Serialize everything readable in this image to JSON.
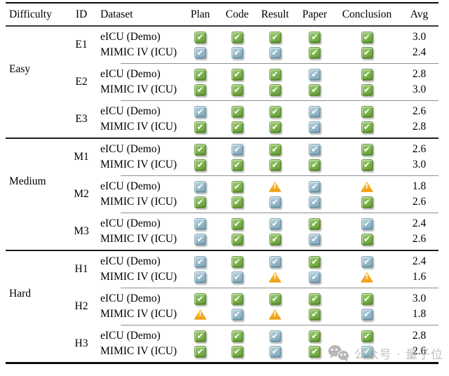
{
  "header": {
    "columns": [
      "Difficulty",
      "ID",
      "Dataset",
      "Plan",
      "Code",
      "Result",
      "Paper",
      "Conclusion",
      "Avg"
    ]
  },
  "legend": {
    "green": "full-success-check",
    "blue": "partial-success-check",
    "warn": "warning-triangle"
  },
  "colors": {
    "check_green": "#7ab14b",
    "check_blue": "#93b7c8",
    "warning_orange": "#f9b831",
    "watermark_gray": "#b6b6b6"
  },
  "glyphs": {
    "check": "✔",
    "warn": "!"
  },
  "sections": [
    {
      "difficulty": "Easy",
      "groups": [
        {
          "id": "E1",
          "rows": [
            {
              "dataset": "eICU (Demo)",
              "marks": [
                "green",
                "green",
                "green",
                "green",
                "green"
              ],
              "avg": "3.0"
            },
            {
              "dataset": "MIMIC IV (ICU)",
              "marks": [
                "blue",
                "blue",
                "blue",
                "green",
                "green"
              ],
              "avg": "2.4"
            }
          ]
        },
        {
          "id": "E2",
          "rows": [
            {
              "dataset": "eICU (Demo)",
              "marks": [
                "green",
                "green",
                "green",
                "blue",
                "green"
              ],
              "avg": "2.8"
            },
            {
              "dataset": "MIMIC IV (ICU)",
              "marks": [
                "green",
                "green",
                "green",
                "green",
                "green"
              ],
              "avg": "3.0"
            }
          ]
        },
        {
          "id": "E3",
          "rows": [
            {
              "dataset": "eICU (Demo)",
              "marks": [
                "blue",
                "green",
                "green",
                "blue",
                "green"
              ],
              "avg": "2.6"
            },
            {
              "dataset": "MIMIC IV (ICU)",
              "marks": [
                "green",
                "green",
                "green",
                "blue",
                "green"
              ],
              "avg": "2.8"
            }
          ]
        }
      ]
    },
    {
      "difficulty": "Medium",
      "groups": [
        {
          "id": "M1",
          "rows": [
            {
              "dataset": "eICU (Demo)",
              "marks": [
                "green",
                "blue",
                "green",
                "blue",
                "green"
              ],
              "avg": "2.6"
            },
            {
              "dataset": "MIMIC IV (ICU)",
              "marks": [
                "green",
                "green",
                "green",
                "green",
                "green"
              ],
              "avg": "3.0"
            }
          ]
        },
        {
          "id": "M2",
          "rows": [
            {
              "dataset": "eICU (Demo)",
              "marks": [
                "blue",
                "green",
                "warn",
                "blue",
                "warn"
              ],
              "avg": "1.8"
            },
            {
              "dataset": "MIMIC IV (ICU)",
              "marks": [
                "green",
                "green",
                "blue",
                "blue",
                "green"
              ],
              "avg": "2.6"
            }
          ]
        },
        {
          "id": "M3",
          "rows": [
            {
              "dataset": "eICU (Demo)",
              "marks": [
                "blue",
                "green",
                "blue",
                "green",
                "blue"
              ],
              "avg": "2.4"
            },
            {
              "dataset": "MIMIC IV (ICU)",
              "marks": [
                "blue",
                "green",
                "green",
                "blue",
                "green"
              ],
              "avg": "2.6"
            }
          ]
        }
      ]
    },
    {
      "difficulty": "Hard",
      "groups": [
        {
          "id": "H1",
          "rows": [
            {
              "dataset": "eICU (Demo)",
              "marks": [
                "blue",
                "green",
                "blue",
                "green",
                "blue"
              ],
              "avg": "2.4"
            },
            {
              "dataset": "MIMIC IV (ICU)",
              "marks": [
                "blue",
                "blue",
                "warn",
                "blue",
                "warn"
              ],
              "avg": "1.6"
            }
          ]
        },
        {
          "id": "H2",
          "rows": [
            {
              "dataset": "eICU (Demo)",
              "marks": [
                "green",
                "green",
                "green",
                "green",
                "green"
              ],
              "avg": "3.0"
            },
            {
              "dataset": "MIMIC IV (ICU)",
              "marks": [
                "warn",
                "blue",
                "warn",
                "green",
                "blue"
              ],
              "avg": "1.8"
            }
          ]
        },
        {
          "id": "H3",
          "rows": [
            {
              "dataset": "eICU (Demo)",
              "marks": [
                "green",
                "green",
                "blue",
                "green",
                "green"
              ],
              "avg": "2.8"
            },
            {
              "dataset": "MIMIC IV (ICU)",
              "marks": [
                "green",
                "green",
                "blue",
                "green",
                "blue"
              ],
              "avg": "2.6"
            }
          ]
        }
      ]
    }
  ],
  "watermark": {
    "text": "公众号 · 量子位",
    "icon": "wechat-icon"
  }
}
